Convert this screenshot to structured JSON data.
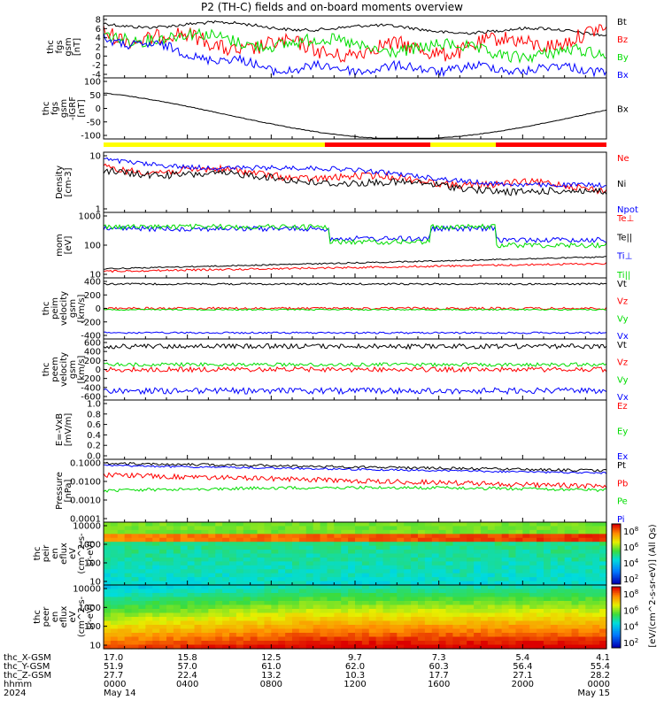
{
  "title": "P2 (TH-C) fields and on-board moments overview",
  "colors": {
    "black": "#000000",
    "red": "#ff0000",
    "green": "#00dd00",
    "blue": "#0000ff",
    "yellow": "#ffff00"
  },
  "chart_data": [
    {
      "type": "line",
      "ylabel": [
        "thc",
        "fgs",
        "gsm",
        "[nT]"
      ],
      "yticks": [
        "8",
        "6",
        "4",
        "2",
        "0",
        "-2",
        "-4"
      ],
      "ylim": [
        -4,
        8
      ],
      "series": [
        {
          "name": "Bt",
          "color": "#000000"
        },
        {
          "name": "Bz",
          "color": "#ff0000"
        },
        {
          "name": "By",
          "color": "#00dd00"
        },
        {
          "name": "Bx",
          "color": "#0000ff"
        }
      ]
    },
    {
      "type": "line",
      "ylabel": [
        "thc",
        "fgs",
        "gsm",
        "-IGRF",
        "[nT]"
      ],
      "yticks": [
        "100",
        "50",
        "0",
        "-50",
        "-100"
      ],
      "ylim": [
        -120,
        100
      ],
      "series": [
        {
          "name": "Bx",
          "color": "#000000"
        }
      ]
    },
    {
      "type": "line",
      "ylabel": [
        "Density",
        "[cm-3]"
      ],
      "yticks": [
        "10",
        "1"
      ],
      "log": true,
      "series": [
        {
          "name": "Ne",
          "color": "#ff0000"
        },
        {
          "name": "Ni",
          "color": "#000000"
        },
        {
          "name": "Npot",
          "color": "#0000ff"
        }
      ]
    },
    {
      "type": "line",
      "ylabel": [
        "mom",
        "[eV]"
      ],
      "yticks": [
        "1000",
        "100",
        "10"
      ],
      "log": true,
      "series": [
        {
          "name": "Te⊥",
          "color": "#ff0000"
        },
        {
          "name": "Te||",
          "color": "#000000"
        },
        {
          "name": "Ti⊥",
          "color": "#0000ff"
        },
        {
          "name": "Ti||",
          "color": "#00dd00"
        }
      ]
    },
    {
      "type": "line",
      "ylabel": [
        "thc",
        "peim",
        "velocity",
        "gsm",
        "[km/s]"
      ],
      "yticks": [
        "400",
        "200",
        "0",
        "-200",
        "-400"
      ],
      "ylim": [
        -480,
        480
      ],
      "series": [
        {
          "name": "Vt",
          "color": "#000000"
        },
        {
          "name": "Vz",
          "color": "#ff0000"
        },
        {
          "name": "Vy",
          "color": "#00dd00"
        },
        {
          "name": "Vx",
          "color": "#0000ff"
        }
      ]
    },
    {
      "type": "line",
      "ylabel": [
        "thc",
        "peem",
        "velocity",
        "gsm",
        "[km/s]"
      ],
      "yticks": [
        "600",
        "400",
        "200",
        "0",
        "-200",
        "-400",
        "-600"
      ],
      "ylim": [
        -700,
        700
      ],
      "series": [
        {
          "name": "Vt",
          "color": "#000000"
        },
        {
          "name": "Vz",
          "color": "#ff0000"
        },
        {
          "name": "Vy",
          "color": "#00dd00"
        },
        {
          "name": "Vx",
          "color": "#0000ff"
        }
      ]
    },
    {
      "type": "line",
      "ylabel": [
        "E=-VxB",
        "[mV/m]"
      ],
      "yticks": [
        "1.0",
        "0.8",
        "0.6",
        "0.4",
        "0.2",
        "0.0"
      ],
      "ylim": [
        0,
        1
      ],
      "series": [
        {
          "name": "Ez",
          "color": "#ff0000"
        },
        {
          "name": "Ey",
          "color": "#00dd00"
        },
        {
          "name": "Ex",
          "color": "#0000ff"
        }
      ]
    },
    {
      "type": "line",
      "ylabel": [
        "Pressure",
        "[nPa]"
      ],
      "yticks": [
        "0.1000",
        "0.0100",
        "0.0010",
        "0.0001"
      ],
      "log": true,
      "series": [
        {
          "name": "Pt",
          "color": "#000000"
        },
        {
          "name": "Pb",
          "color": "#ff0000"
        },
        {
          "name": "Pe",
          "color": "#00dd00"
        },
        {
          "name": "Pi",
          "color": "#0000ff"
        }
      ]
    },
    {
      "type": "heatmap",
      "ylabel": [
        "thc",
        "peir",
        "en",
        "eflux",
        "eV",
        "(cm^2-s-",
        "sr-eV)"
      ],
      "yticks": [
        "10000",
        "1000",
        "100",
        "10"
      ],
      "log": true
    },
    {
      "type": "heatmap",
      "ylabel": [
        "thc",
        "peer",
        "en",
        "eflux",
        "eV",
        "(cm^2-s-",
        "sr-eV)"
      ],
      "yticks": [
        "10000",
        "1000",
        "100",
        "10"
      ],
      "log": true
    }
  ],
  "colorbar": {
    "upper_ticks": [
      "10^8",
      "10^6",
      "10^4",
      "10^2"
    ],
    "lower_ticks": [
      "10^8",
      "10^6",
      "10^4",
      "10^2"
    ],
    "label": "[eV/(cm^2-s-sr-eV)] (All Qs)"
  },
  "footer": {
    "row_labels": [
      "thc_X-GSM",
      "thc_Y-GSM",
      "thc_Z-GSM",
      "hhmm",
      "2024"
    ],
    "columns": [
      [
        "17.0",
        "51.9",
        "27.7",
        "0000",
        "May 14"
      ],
      [
        "15.8",
        "57.0",
        "22.4",
        "0400",
        ""
      ],
      [
        "12.5",
        "61.0",
        "13.2",
        "0800",
        ""
      ],
      [
        "9.7",
        "62.0",
        "10.3",
        "1200",
        ""
      ],
      [
        "7.3",
        "60.3",
        "17.7",
        "1600",
        ""
      ],
      [
        "5.4",
        "56.4",
        "27.1",
        "2000",
        ""
      ],
      [
        "4.1",
        "55.4",
        "28.2",
        "0000",
        "May 15"
      ]
    ]
  }
}
